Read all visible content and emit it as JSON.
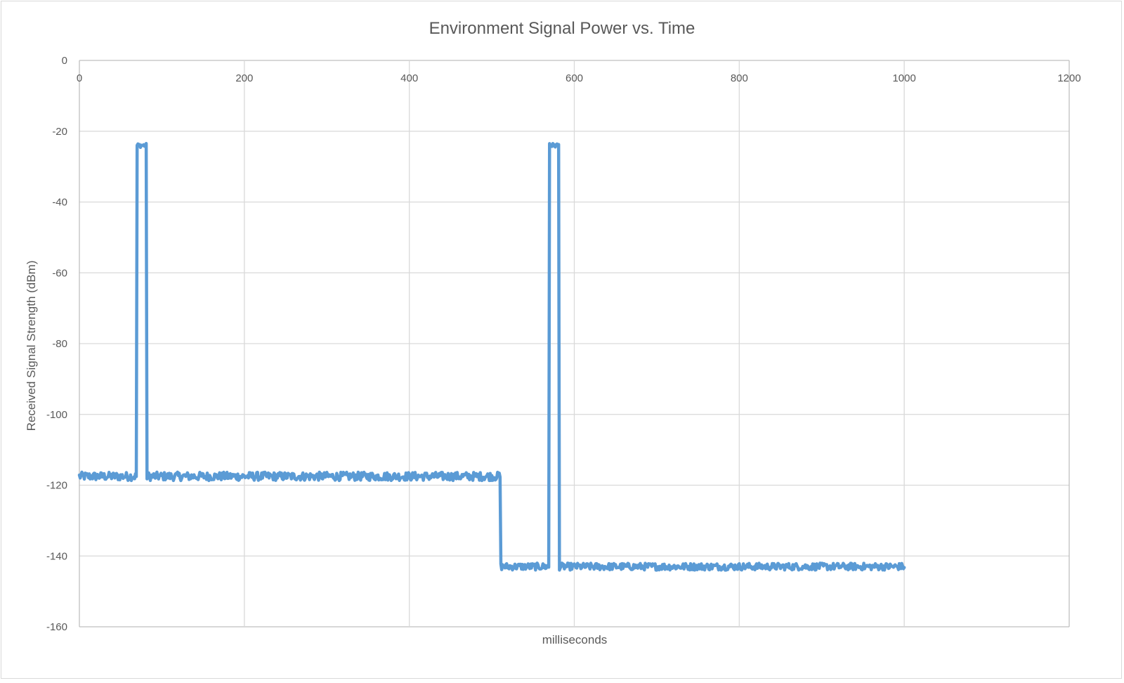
{
  "chart_data": {
    "type": "line",
    "title": "Environment Signal Power vs. Time",
    "xlabel": "milliseconds",
    "ylabel": "Received Signal Strength (dBm)",
    "xlim": [
      0,
      1200
    ],
    "ylim": [
      -160,
      0
    ],
    "x_ticks": [
      0,
      200,
      400,
      600,
      800,
      1000,
      1200
    ],
    "y_ticks": [
      0,
      -20,
      -40,
      -60,
      -80,
      -100,
      -120,
      -140,
      -160
    ],
    "x_tick_labels": [
      "0",
      "200",
      "400",
      "600",
      "800",
      "1000",
      "1200"
    ],
    "y_tick_labels": [
      "0",
      "-20",
      "-40",
      "-60",
      "-80",
      "-100",
      "-120",
      "-140",
      "-160"
    ],
    "x_axis_position": "top",
    "grid": true,
    "legend": "none",
    "series_color": "#5b9bd5",
    "series": [
      {
        "segments": [
          {
            "x_start": 0,
            "x_end": 69,
            "level": -117.5,
            "noise_amplitude": 1.2
          },
          {
            "x_start": 70,
            "x_end": 81,
            "level": -24,
            "noise_amplitude": 0.6
          },
          {
            "x_start": 82,
            "x_end": 510,
            "level": -117.5,
            "noise_amplitude": 1.2
          },
          {
            "x_start": 511,
            "x_end": 569,
            "level": -143,
            "noise_amplitude": 1.0
          },
          {
            "x_start": 570,
            "x_end": 581,
            "level": -24,
            "noise_amplitude": 0.6
          },
          {
            "x_start": 582,
            "x_end": 1000,
            "level": -143,
            "noise_amplitude": 1.0
          }
        ],
        "peaks": [
          {
            "x": 70,
            "y": -24
          },
          {
            "x": 570,
            "y": -23.5
          }
        ]
      }
    ]
  }
}
